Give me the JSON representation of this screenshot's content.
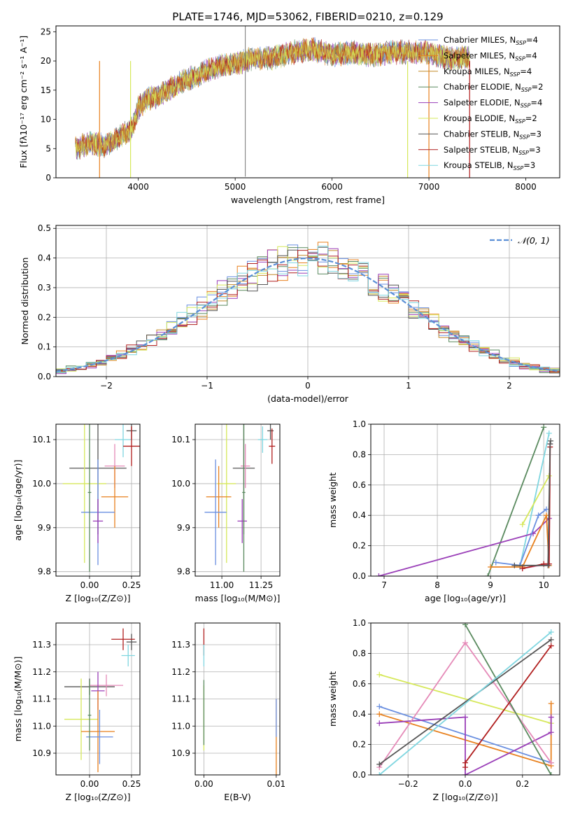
{
  "figure": {
    "title": "PLATE=1746, MJD=53062, FIBERID=0210, z=0.129"
  },
  "colors": {
    "chabrier_miles": "#6a8fe0",
    "salpeter_miles": "#e8811e",
    "kroupa_miles": "#e8811e",
    "chabrier_elodie": "#5a8a5f",
    "salpeter_elodie": "#9a3fb8",
    "kroupa_elodie": "#d6e85a",
    "chabrier_stelib": "#555555",
    "salpeter_stelib": "#b01e1e",
    "kroupa_stelib": "#7fd6e0",
    "pink": "#e58ab8",
    "normal": "#5b8fd6"
  },
  "chart_data": [
    {
      "id": "spectrum",
      "type": "line",
      "xlabel": "wavelength [Angstrom, rest frame]",
      "ylabel": "Flux [fλ10⁻¹⁷ erg cm⁻² s⁻¹ A⁻¹]",
      "xlim": [
        3150,
        8350
      ],
      "ylim": [
        0,
        26
      ],
      "xticks": [
        4000,
        5000,
        6000,
        7000,
        8000
      ],
      "yticks": [
        0,
        5,
        10,
        15,
        20,
        25
      ],
      "legend_position": "top-right",
      "continuum": {
        "x": [
          3350,
          3500,
          3650,
          3800,
          3900,
          3950,
          4000,
          4100,
          4200,
          4300,
          4400,
          4600,
          4800,
          5000,
          5200,
          5400,
          5600,
          5800,
          6000,
          6200,
          6400,
          6600,
          6800,
          7000,
          7200,
          7400
        ],
        "y": [
          5,
          6,
          5.5,
          7,
          8,
          9,
          12,
          13.5,
          14,
          15,
          16,
          17.5,
          19,
          19.5,
          20.5,
          20.5,
          21.5,
          22,
          21,
          21.5,
          21,
          21.5,
          21.5,
          21.5,
          20.5,
          20.5
        ]
      },
      "series": [
        {
          "name": "Chabrier MILES, N_SSP=4",
          "label_main": "Chabrier MILES, N",
          "label_sub": "SSP",
          "label_tail": "=4",
          "color": "#6a8fe0"
        },
        {
          "name": "Salpeter MILES, N_SSP=4",
          "label_main": "Salpeter MILES, N",
          "label_sub": "SSP",
          "label_tail": "=4",
          "color": "#e8811e"
        },
        {
          "name": "Kroupa MILES, N_SSP=4",
          "label_main": "Kroupa MILES, N",
          "label_sub": "SSP",
          "label_tail": "=4",
          "color": "#c48a28"
        },
        {
          "name": "Chabrier ELODIE, N_SSP=2",
          "label_main": "Chabrier ELODIE, N",
          "label_sub": "SSP",
          "label_tail": "=2",
          "color": "#5a8a5f"
        },
        {
          "name": "Salpeter ELODIE, N_SSP=4",
          "label_main": "Salpeter ELODIE, N",
          "label_sub": "SSP",
          "label_tail": "=4",
          "color": "#9a3fb8"
        },
        {
          "name": "Kroupa ELODIE, N_SSP=2",
          "label_main": "Kroupa ELODIE, N",
          "label_sub": "SSP",
          "label_tail": "=2",
          "color": "#d6e85a"
        },
        {
          "name": "Chabrier STELIB, N_SSP=3",
          "label_main": "Chabrier STELIB, N",
          "label_sub": "SSP",
          "label_tail": "=3",
          "color": "#555555"
        },
        {
          "name": "Salpeter STELIB, N_SSP=3",
          "label_main": "Salpeter STELIB, N",
          "label_sub": "SSP",
          "label_tail": "=3",
          "color": "#b01e1e"
        },
        {
          "name": "Kroupa STELIB, N_SSP=3",
          "label_main": "Kroupa STELIB, N",
          "label_sub": "SSP",
          "label_tail": "=3",
          "color": "#7fd6e0"
        }
      ],
      "drops": [
        {
          "x": 3600,
          "color": "#e8811e"
        },
        {
          "x": 3920,
          "color": "#d6e85a"
        },
        {
          "x": 6780,
          "color": "#d6e85a"
        },
        {
          "x": 7000,
          "color": "#e8811e"
        },
        {
          "x": 7420,
          "color": "#b01e1e"
        }
      ]
    },
    {
      "id": "residuals",
      "type": "line",
      "xlabel": "(data-model)/error",
      "ylabel": "Normed distribution",
      "xlim": [
        -2.5,
        2.5
      ],
      "ylim": [
        0,
        0.51
      ],
      "xticks": [
        -2,
        -1,
        0,
        1,
        2
      ],
      "yticks": [
        0.0,
        0.1,
        0.2,
        0.3,
        0.4,
        0.5
      ],
      "grid": true,
      "legend_position": "top-right",
      "legend": "𝒩(0, 1)",
      "bin_width": 0.1
    },
    {
      "id": "age_vs_Z",
      "type": "scatter",
      "xlabel": "Z [log₁₀(Z/Z⊙)]",
      "ylabel": "age  [log₁₀(age/yr)]",
      "xlim": [
        -0.2,
        0.3
      ],
      "ylim": [
        9.79,
        10.135
      ],
      "xticks": [
        0.0,
        0.25
      ],
      "yticks": [
        9.8,
        9.9,
        10.0,
        10.1
      ],
      "grid": true,
      "points": [
        {
          "x": 0.2,
          "y": 10.1,
          "xerr": 0.05,
          "yerr": 0.04,
          "color": "#7fd6e0"
        },
        {
          "x": 0.25,
          "y": 10.12,
          "xerr": 0.03,
          "yerr": 0.02,
          "color": "#555555"
        },
        {
          "x": 0.25,
          "y": 10.085,
          "xerr": 0.05,
          "yerr": 0.045,
          "color": "#b01e1e"
        },
        {
          "x": 0.05,
          "y": 10.035,
          "xerr": 0.17,
          "yerr": 0.15,
          "color": "#555555"
        },
        {
          "x": 0.15,
          "y": 10.04,
          "xerr": 0.06,
          "yerr": 0.05,
          "color": "#e58ab8"
        },
        {
          "x": -0.03,
          "y": 10.0,
          "xerr": 0.13,
          "yerr": 0.18,
          "color": "#d6e85a"
        },
        {
          "x": 0.15,
          "y": 9.97,
          "xerr": 0.08,
          "yerr": 0.07,
          "color": "#e8811e"
        },
        {
          "x": 0.05,
          "y": 9.935,
          "xerr": 0.1,
          "yerr": 0.12,
          "color": "#6a8fe0"
        },
        {
          "x": 0.05,
          "y": 9.915,
          "xerr": 0.03,
          "yerr": 0.05,
          "color": "#9a3fb8"
        },
        {
          "x": 0.0,
          "y": 9.98,
          "xerr": 0.01,
          "yerr": 0.18,
          "color": "#5a8a5f"
        }
      ]
    },
    {
      "id": "age_vs_mass",
      "type": "scatter",
      "xlabel": "mass [log₁₀(M/M⊙)]",
      "ylabel": "",
      "xlim": [
        10.83,
        11.37
      ],
      "ylim": [
        9.79,
        10.135
      ],
      "xticks": [
        11.0,
        11.25
      ],
      "yticks": [
        9.8,
        9.9,
        10.0,
        10.1
      ],
      "grid": true,
      "points": [
        {
          "x": 11.26,
          "y": 10.1,
          "xerr": 0.03,
          "yerr": 0.03,
          "color": "#7fd6e0"
        },
        {
          "x": 11.31,
          "y": 10.12,
          "xerr": 0.02,
          "yerr": 0.02,
          "color": "#555555"
        },
        {
          "x": 11.32,
          "y": 10.085,
          "xerr": 0.02,
          "yerr": 0.04,
          "color": "#b01e1e"
        },
        {
          "x": 11.14,
          "y": 10.035,
          "xerr": 0.07,
          "yerr": 0.15,
          "color": "#555555"
        },
        {
          "x": 11.15,
          "y": 10.04,
          "xerr": 0.03,
          "yerr": 0.05,
          "color": "#e58ab8"
        },
        {
          "x": 11.03,
          "y": 10.0,
          "xerr": 0.06,
          "yerr": 0.18,
          "color": "#d6e85a"
        },
        {
          "x": 10.98,
          "y": 9.97,
          "xerr": 0.08,
          "yerr": 0.07,
          "color": "#e8811e"
        },
        {
          "x": 10.96,
          "y": 9.935,
          "xerr": 0.07,
          "yerr": 0.12,
          "color": "#6a8fe0"
        },
        {
          "x": 11.13,
          "y": 9.915,
          "xerr": 0.03,
          "yerr": 0.05,
          "color": "#9a3fb8"
        },
        {
          "x": 11.14,
          "y": 9.98,
          "xerr": 0.01,
          "yerr": 0.18,
          "color": "#5a8a5f"
        }
      ]
    },
    {
      "id": "mass_weight_vs_age",
      "type": "line",
      "xlabel": "age  [log₁₀(age/yr)]",
      "ylabel": "mass weight",
      "xlim": [
        6.75,
        10.3
      ],
      "ylim": [
        0,
        1.0
      ],
      "xticks": [
        7,
        8,
        9,
        10
      ],
      "yticks": [
        0.0,
        0.2,
        0.4,
        0.6,
        0.8,
        1.0
      ],
      "grid": true,
      "series": [
        {
          "color": "#5a8a5f",
          "x": [
            8.95,
            10.0
          ],
          "y": [
            0.0,
            0.98
          ]
        },
        {
          "color": "#7fd6e0",
          "x": [
            9.55,
            10.1
          ],
          "y": [
            0.06,
            0.94
          ]
        },
        {
          "color": "#d6e85a",
          "x": [
            9.6,
            10.1
          ],
          "y": [
            0.34,
            0.66
          ]
        },
        {
          "color": "#9a3fb8",
          "x": [
            6.9,
            9.8,
            10.1
          ],
          "y": [
            0.0,
            0.28,
            0.38
          ]
        },
        {
          "color": "#6a8fe0",
          "x": [
            9.1,
            9.55,
            9.9,
            10.05
          ],
          "y": [
            0.09,
            0.07,
            0.4,
            0.44
          ]
        },
        {
          "color": "#e8811e",
          "x": [
            9.0,
            9.6,
            10.05,
            10.1
          ],
          "y": [
            0.06,
            0.06,
            0.4,
            0.07
          ]
        },
        {
          "color": "#e58ab8",
          "x": [
            9.6,
            10.1,
            10.12
          ],
          "y": [
            0.05,
            0.08,
            0.87
          ]
        },
        {
          "color": "#b01e1e",
          "x": [
            9.6,
            10.0,
            10.1,
            10.12
          ],
          "y": [
            0.05,
            0.08,
            0.08,
            0.85
          ]
        },
        {
          "color": "#555555",
          "x": [
            9.45,
            10.08,
            10.12,
            10.13
          ],
          "y": [
            0.07,
            0.07,
            0.87,
            0.89
          ]
        }
      ]
    },
    {
      "id": "mass_vs_Z",
      "type": "scatter",
      "xlabel": "Z [log₁₀(Z/Z⊙)]",
      "ylabel": "mass [log₁₀(M/M⊙)]",
      "xlim": [
        -0.2,
        0.3
      ],
      "ylim": [
        10.82,
        11.38
      ],
      "xticks": [
        0.0,
        0.25
      ],
      "yticks": [
        10.9,
        11.0,
        11.1,
        11.2,
        11.3
      ],
      "grid": true,
      "points": [
        {
          "x": 0.23,
          "y": 11.26,
          "xerr": 0.04,
          "yerr": 0.04,
          "color": "#7fd6e0"
        },
        {
          "x": 0.25,
          "y": 11.31,
          "xerr": 0.03,
          "yerr": 0.03,
          "color": "#555555"
        },
        {
          "x": 0.2,
          "y": 11.32,
          "xerr": 0.07,
          "yerr": 0.04,
          "color": "#b01e1e"
        },
        {
          "x": 0.0,
          "y": 11.145,
          "xerr": 0.15,
          "yerr": 0.03,
          "color": "#555555"
        },
        {
          "x": 0.1,
          "y": 11.15,
          "xerr": 0.1,
          "yerr": 0.04,
          "color": "#e58ab8"
        },
        {
          "x": 0.05,
          "y": 11.13,
          "xerr": 0.04,
          "yerr": 0.07,
          "color": "#9a3fb8"
        },
        {
          "x": -0.05,
          "y": 11.025,
          "xerr": 0.1,
          "yerr": 0.15,
          "color": "#d6e85a"
        },
        {
          "x": 0.05,
          "y": 10.98,
          "xerr": 0.1,
          "yerr": 0.15,
          "color": "#e8811e"
        },
        {
          "x": 0.06,
          "y": 10.96,
          "xerr": 0.08,
          "yerr": 0.1,
          "color": "#6a8fe0"
        },
        {
          "x": 0.0,
          "y": 11.04,
          "xerr": 0.01,
          "yerr": 0.13,
          "color": "#5a8a5f"
        }
      ]
    },
    {
      "id": "mass_vs_ebv",
      "type": "scatter",
      "xlabel": "E(B-V)",
      "ylabel": "",
      "xlim": [
        -0.0012,
        0.0105
      ],
      "ylim": [
        10.82,
        11.38
      ],
      "xticks": [
        0.0,
        0.01
      ],
      "xtick_labels": [
        "0.00",
        "0.01"
      ],
      "yticks": [
        10.9,
        11.0,
        11.1,
        11.2,
        11.3
      ],
      "grid": true,
      "points": [
        {
          "x": 0.0,
          "y": 11.31,
          "xerr": 0,
          "yerr": 0.05,
          "color": "#b01e1e"
        },
        {
          "x": 0.0,
          "y": 11.26,
          "xerr": 0,
          "yerr": 0.04,
          "color": "#7fd6e0"
        },
        {
          "x": 0.0,
          "y": 11.03,
          "xerr": 0,
          "yerr": 0.12,
          "color": "#d6e85a"
        },
        {
          "x": 0.0,
          "y": 11.05,
          "xerr": 0,
          "yerr": 0.12,
          "color": "#5a8a5f"
        },
        {
          "x": 0.01,
          "y": 10.96,
          "xerr": 0,
          "yerr": 0.14,
          "color": "#e8811e"
        },
        {
          "x": 0.01,
          "y": 11.03,
          "xerr": 0,
          "yerr": 0.07,
          "color": "#6a8fe0"
        }
      ]
    },
    {
      "id": "mass_weight_vs_Z",
      "type": "line",
      "xlabel": "Z [log₁₀(Z/Z⊙)]",
      "ylabel": "mass weight",
      "xlim": [
        -0.33,
        0.33
      ],
      "ylim": [
        0,
        1.0
      ],
      "xticks": [
        -0.2,
        0.0,
        0.2
      ],
      "yticks": [
        0.0,
        0.2,
        0.4,
        0.6,
        0.8,
        1.0
      ],
      "grid": true,
      "series": [
        {
          "color": "#d6e85a",
          "x": [
            -0.3,
            0.3
          ],
          "y": [
            0.66,
            0.34
          ]
        },
        {
          "color": "#6a8fe0",
          "x": [
            -0.3,
            0.3
          ],
          "y": [
            0.45,
            0.08
          ]
        },
        {
          "color": "#e8811e",
          "x": [
            -0.3,
            0.3,
            0.3
          ],
          "y": [
            0.4,
            0.06,
            0.47
          ]
        },
        {
          "color": "#9a3fb8",
          "x": [
            -0.3,
            0.0,
            0.0,
            0.3,
            0.3
          ],
          "y": [
            0.34,
            0.38,
            0.0,
            0.28,
            0.38
          ]
        },
        {
          "color": "#e58ab8",
          "x": [
            -0.3,
            0.0,
            0.3
          ],
          "y": [
            0.05,
            0.87,
            0.08
          ]
        },
        {
          "color": "#5a8a5f",
          "x": [
            0.0,
            0.3
          ],
          "y": [
            0.99,
            0.0
          ]
        },
        {
          "color": "#b01e1e",
          "x": [
            0.0,
            0.0,
            0.3
          ],
          "y": [
            0.05,
            0.08,
            0.85
          ]
        },
        {
          "color": "#555555",
          "x": [
            -0.3,
            0.3
          ],
          "y": [
            0.07,
            0.89
          ]
        },
        {
          "color": "#7fd6e0",
          "x": [
            -0.3,
            0.3
          ],
          "y": [
            0.0,
            0.94
          ]
        }
      ]
    }
  ]
}
